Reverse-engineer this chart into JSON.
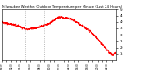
{
  "title": "Milwaukee Weather Outdoor Temperature per Minute (Last 24 Hours)",
  "line_color": "#ff0000",
  "bg_color": "#ffffff",
  "grid_color": "#dddddd",
  "vline_color": "#999999",
  "ylim": [
    10,
    50
  ],
  "yticks": [
    15,
    20,
    25,
    30,
    35,
    40,
    45,
    50
  ],
  "num_points": 1440,
  "ctrl_t": [
    0.0,
    0.04,
    0.1,
    0.17,
    0.22,
    0.27,
    0.33,
    0.42,
    0.5,
    0.58,
    0.65,
    0.72,
    0.78,
    0.83,
    0.88,
    0.92,
    0.95,
    0.97,
    1.0
  ],
  "ctrl_v": [
    40,
    39,
    38,
    36,
    34,
    35,
    36,
    39,
    44,
    43,
    40,
    36,
    32,
    27,
    22,
    18,
    15,
    14,
    16
  ],
  "vline_pos": [
    0.2,
    0.37
  ],
  "noise_std": 0.4,
  "title_fontsize": 2.8,
  "tick_labelsize": 2.5,
  "line_width": 0.7,
  "fig_width": 1.6,
  "fig_height": 0.87,
  "fig_dpi": 100
}
